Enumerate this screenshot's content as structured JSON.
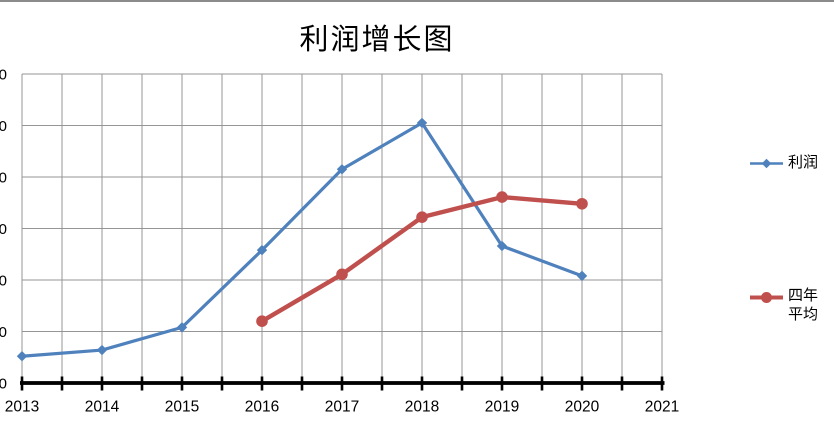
{
  "window": {
    "top_border_color": "#8b8b8b",
    "background_color": "#ffffff"
  },
  "chart_data": {
    "type": "line",
    "title": "利润增长图",
    "x_categories": [
      "2013",
      "2014",
      "2015",
      "2016",
      "2017",
      "2018",
      "2019",
      "2020",
      "2021"
    ],
    "series": [
      {
        "key": "profit",
        "name": "利润",
        "color": "#4f81bd",
        "marker": "diamond",
        "start_category": "2013",
        "values": [
          52,
          64,
          108,
          258,
          415,
          505,
          266,
          208
        ]
      },
      {
        "key": "four_year_average",
        "name": "四年平均",
        "color": "#c0504d",
        "marker": "circle",
        "start_category": "2016",
        "values": [
          120,
          211,
          322,
          361,
          348
        ]
      }
    ],
    "ylim": [
      0,
      600
    ],
    "y_step": 100,
    "y_tick_labels": {
      "clipped": true,
      "visible_fragment": "0"
    },
    "grid": {
      "horizontal": true,
      "vertical": true,
      "minor_vertical": true,
      "color": "#969696"
    },
    "axis_color": "#000000",
    "tick_label_color": "#000000",
    "legend_position": "right"
  },
  "legend": {
    "items": [
      {
        "label": "利润"
      },
      {
        "label": "四年平均"
      }
    ]
  }
}
